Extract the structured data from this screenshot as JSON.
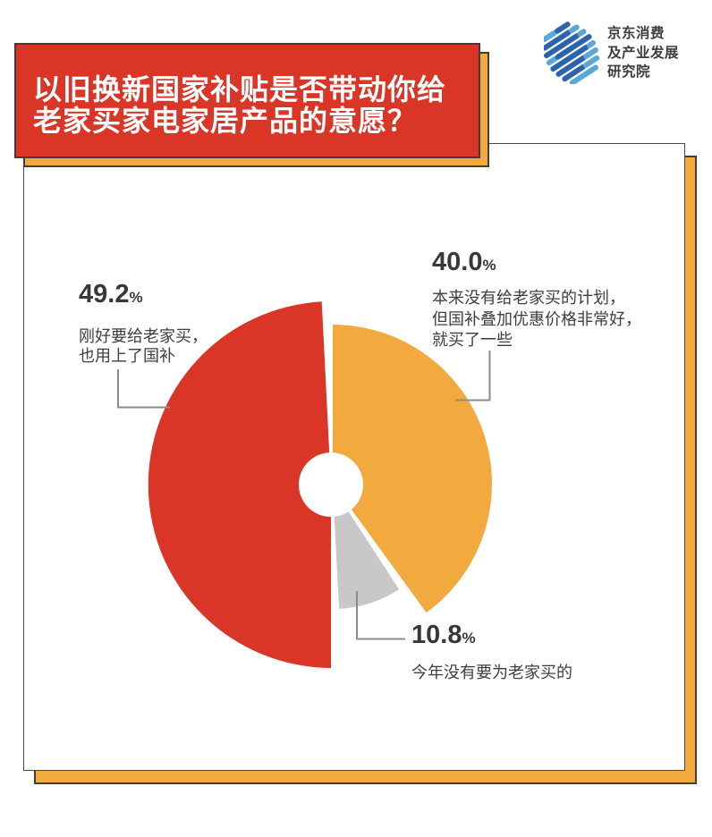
{
  "header": {
    "title_line1": "以旧换新国家补贴是否带动你给",
    "title_line2": "老家买家电家居产品的意愿？"
  },
  "logo": {
    "line1": "京东消费",
    "line2": "及产业发展",
    "line3": "研究院"
  },
  "chart_data": {
    "type": "pie",
    "title": "以旧换新国家补贴是否带动你给老家买家电家居产品的意愿？",
    "donut": true,
    "legend_position": "callouts",
    "slices": [
      {
        "label": "刚好要给老家买，也用上了国补",
        "value": 49.2,
        "color": "#D93628"
      },
      {
        "label": "本来没有给老家买的计划，但国补叠加优惠价格非常好，就买了一些",
        "value": 40.0,
        "color": "#F2AA3E"
      },
      {
        "label": "今年没有要为老家买的",
        "value": 10.8,
        "color": "#C8C8C8"
      }
    ]
  },
  "labels": {
    "left": {
      "value": "49.2",
      "pct": "%",
      "desc1": "刚好要给老家买，",
      "desc2": "也用上了国补"
    },
    "right": {
      "value": "40.0",
      "pct": "%",
      "desc1": "本来没有给老家买的计划，",
      "desc2": "但国补叠加优惠价格非常好，",
      "desc3": "就买了一些"
    },
    "bottom": {
      "value": "10.8",
      "pct": "%",
      "desc1": "今年没有要为老家买的"
    }
  },
  "colors": {
    "red": "#D93628",
    "orange": "#F2AA3E",
    "gray": "#C8C8C8",
    "frame_border": "#3E3E3E",
    "leader_line": "#8C8C8C",
    "logo_blue_dark": "#2B63AE",
    "logo_blue_light": "#57A7D7"
  }
}
